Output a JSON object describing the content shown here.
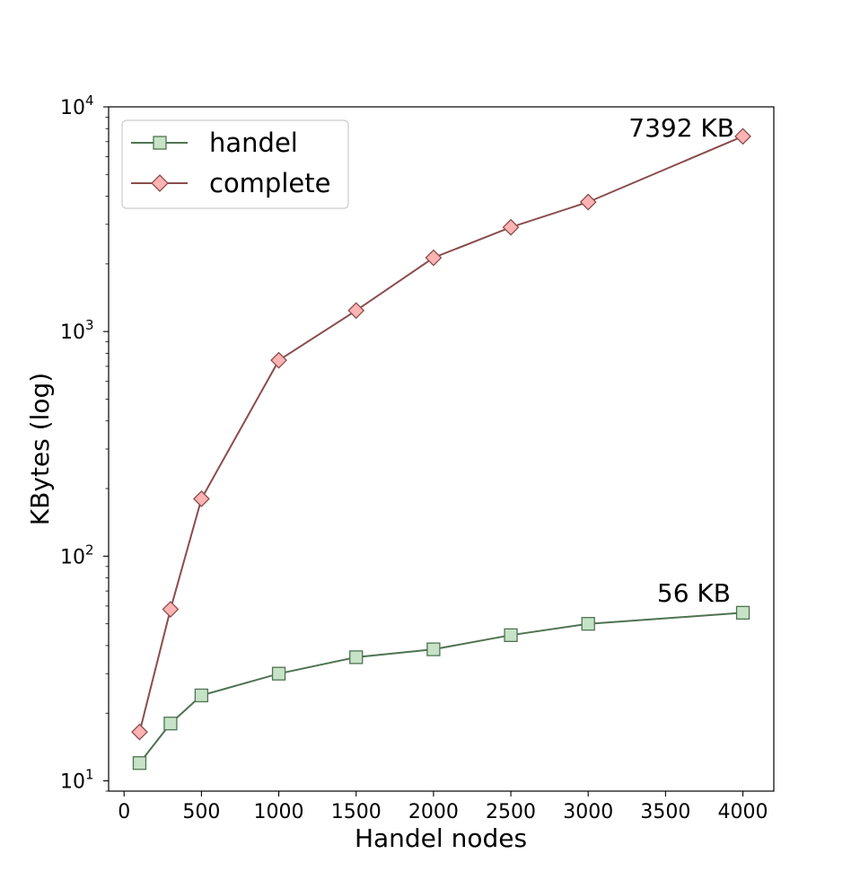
{
  "chart_data": {
    "type": "line",
    "title": "",
    "xlabel": "Handel nodes",
    "ylabel": "KBytes (log)",
    "x": [
      100,
      300,
      500,
      1000,
      1500,
      2000,
      2500,
      3000,
      4000
    ],
    "xticks": [
      0,
      500,
      1000,
      1500,
      2000,
      2500,
      3000,
      3500,
      4000
    ],
    "xlim": [
      -100,
      4200
    ],
    "yscale": "log",
    "ylim": [
      9,
      10000
    ],
    "yticks": [
      {
        "value": 10,
        "base": "10",
        "exp": "1"
      },
      {
        "value": 100,
        "base": "10",
        "exp": "2"
      },
      {
        "value": 1000,
        "base": "10",
        "exp": "3"
      },
      {
        "value": 10000,
        "base": "10",
        "exp": "4"
      }
    ],
    "grid": false,
    "legend": "top-left",
    "series": [
      {
        "name": "handel",
        "marker": "square",
        "line_color": "#4f7352",
        "fill_color": "#c6e3c7",
        "values": [
          12,
          18,
          24,
          30,
          35.5,
          38.5,
          44.5,
          50,
          56
        ]
      },
      {
        "name": "complete",
        "marker": "diamond",
        "line_color": "#8b4d4d",
        "fill_color": "#ffb3b3",
        "values": [
          16.5,
          58,
          180,
          745,
          1240,
          2130,
          2910,
          3770,
          7392
        ]
      }
    ],
    "annotations": [
      {
        "text": "7392 KB",
        "series": 1,
        "x": 4000,
        "y": 7392
      },
      {
        "text": "56 KB",
        "series": 0,
        "x": 4000,
        "y": 56
      }
    ]
  }
}
